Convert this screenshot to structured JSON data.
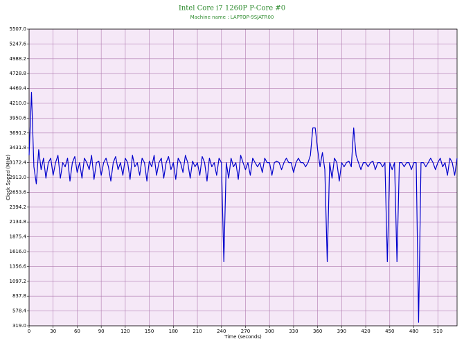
{
  "chart_data": {
    "type": "line",
    "title": "Intel Core i7 1260P P-Core #0",
    "subtitle": "Machine name : LAPTOP-9SJATR00",
    "x_label": "Time (seconds)",
    "y_label": "Clock Speed (MHz)",
    "grid": true,
    "background": "#f5e8f7",
    "xlim": [
      0,
      534
    ],
    "xticks": [
      0,
      30,
      60,
      90,
      120,
      150,
      180,
      210,
      240,
      270,
      300,
      330,
      360,
      390,
      420,
      450,
      480,
      510
    ],
    "ylim": [
      319.0,
      5507.0
    ],
    "yticks": [
      {
        "value": 319.0,
        "label": "319.0"
      },
      578.4,
      837.8,
      1097.2,
      1356.6,
      {
        "value": 1616.0,
        "label": "1616.0"
      },
      1875.4,
      2134.8,
      2394.2,
      2653.6,
      {
        "value": 2913.0,
        "label": "2913.0"
      },
      3172.4,
      3431.8,
      3691.2,
      3950.6,
      {
        "value": 4210.0,
        "label": "4210.0"
      },
      4469.4,
      4728.8,
      4988.2,
      5247.6,
      {
        "value": 5507.0,
        "label": "5507.0"
      }
    ],
    "x": [
      0,
      3,
      6,
      9,
      12,
      15,
      18,
      21,
      24,
      27,
      30,
      33,
      36,
      39,
      42,
      45,
      48,
      51,
      54,
      57,
      60,
      63,
      66,
      69,
      72,
      75,
      78,
      81,
      84,
      87,
      90,
      93,
      96,
      99,
      102,
      105,
      108,
      111,
      114,
      117,
      120,
      123,
      126,
      129,
      132,
      135,
      138,
      141,
      144,
      147,
      150,
      153,
      156,
      159,
      162,
      165,
      168,
      171,
      174,
      177,
      180,
      183,
      186,
      189,
      192,
      195,
      198,
      201,
      204,
      207,
      210,
      213,
      216,
      219,
      222,
      225,
      228,
      231,
      234,
      237,
      240,
      243,
      246,
      249,
      252,
      255,
      258,
      261,
      264,
      267,
      270,
      273,
      276,
      279,
      282,
      285,
      288,
      291,
      294,
      297,
      300,
      303,
      306,
      309,
      312,
      315,
      318,
      321,
      324,
      327,
      330,
      333,
      336,
      339,
      342,
      345,
      348,
      351,
      354,
      357,
      360,
      363,
      366,
      369,
      372,
      375,
      378,
      381,
      384,
      387,
      390,
      393,
      396,
      399,
      402,
      405,
      408,
      411,
      414,
      417,
      420,
      423,
      426,
      429,
      432,
      435,
      438,
      441,
      444,
      447,
      450,
      453,
      456,
      459,
      462,
      465,
      468,
      471,
      474,
      477,
      480,
      483,
      486,
      489,
      492,
      495,
      498,
      501,
      504,
      507,
      510,
      513,
      516,
      519,
      522,
      525,
      528,
      531,
      534
    ],
    "series": [
      {
        "name": "P-Core #0",
        "color": "#0000cc",
        "values": [
          3300,
          4400,
          3100,
          2800,
          3400,
          3050,
          3250,
          2900,
          3172,
          3250,
          2950,
          3172,
          3300,
          2900,
          3172,
          3100,
          3250,
          2850,
          3172,
          3280,
          3000,
          3172,
          2900,
          3250,
          3172,
          3050,
          3300,
          2880,
          3172,
          3200,
          2950,
          3172,
          3250,
          3100,
          2850,
          3172,
          3280,
          3050,
          3172,
          2950,
          3250,
          3172,
          2880,
          3300,
          3100,
          3172,
          2950,
          3250,
          3172,
          2850,
          3200,
          3100,
          3300,
          2950,
          3172,
          3250,
          2900,
          3172,
          3280,
          3050,
          3172,
          2880,
          3250,
          3172,
          3000,
          3300,
          3172,
          2900,
          3200,
          3100,
          3172,
          2950,
          3280,
          3172,
          2850,
          3250,
          3100,
          3172,
          2950,
          3250,
          3172,
          1440,
          3172,
          2900,
          3250,
          3100,
          3172,
          2880,
          3300,
          3172,
          3050,
          3172,
          2950,
          3250,
          3172,
          3100,
          3172,
          3000,
          3250,
          3172,
          3172,
          2950,
          3172,
          3200,
          3172,
          3050,
          3172,
          3250,
          3172,
          3172,
          3000,
          3172,
          3250,
          3172,
          3172,
          3100,
          3172,
          3300,
          3780,
          3780,
          3400,
          3100,
          3350,
          3050,
          1440,
          3172,
          2900,
          3250,
          3172,
          2850,
          3172,
          3100,
          3172,
          3200,
          3100,
          3780,
          3300,
          3172,
          3050,
          3172,
          3172,
          3100,
          3172,
          3200,
          3050,
          3172,
          3172,
          3100,
          3172,
          1440,
          3172,
          3050,
          3172,
          1440,
          3172,
          3172,
          3100,
          3172,
          3172,
          3050,
          3172,
          3172,
          380,
          3172,
          3172,
          3100,
          3172,
          3250,
          3172,
          3050,
          3172,
          3250,
          3100,
          3172,
          2950,
          3250,
          3172,
          2950,
          3250
        ]
      }
    ]
  }
}
